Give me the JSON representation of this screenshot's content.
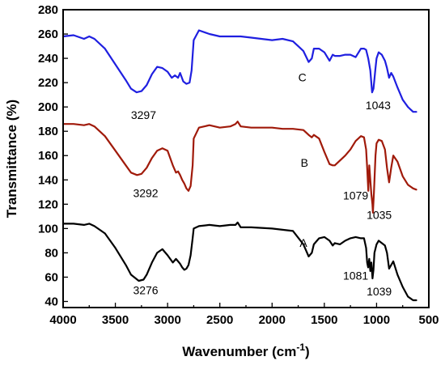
{
  "chart_data": {
    "type": "line",
    "xlabel": "Wavenumber (cm",
    "xlabel_sup": "-1",
    "xlabel_end": ")",
    "ylabel": "Transmittance (%)",
    "xlim": [
      4000,
      500
    ],
    "ylim": [
      35,
      280
    ],
    "x_ticks": [
      4000,
      3500,
      3000,
      2500,
      2000,
      1500,
      1000,
      500
    ],
    "y_ticks": [
      40,
      60,
      80,
      100,
      120,
      140,
      160,
      180,
      200,
      220,
      240,
      260,
      280
    ],
    "grid": false,
    "series": [
      {
        "name": "C",
        "color": "#1f1fe0",
        "x": [
          4000,
          3900,
          3800,
          3750,
          3700,
          3600,
          3500,
          3400,
          3350,
          3297,
          3250,
          3200,
          3150,
          3100,
          3050,
          3000,
          2960,
          2930,
          2900,
          2880,
          2850,
          2820,
          2790,
          2770,
          2750,
          2700,
          2600,
          2500,
          2400,
          2300,
          2200,
          2000,
          1900,
          1800,
          1750,
          1700,
          1650,
          1620,
          1600,
          1550,
          1500,
          1450,
          1420,
          1400,
          1350,
          1300,
          1250,
          1200,
          1150,
          1120,
          1100,
          1080,
          1060,
          1043,
          1030,
          1010,
          1000,
          980,
          950,
          920,
          900,
          880,
          860,
          840,
          800,
          750,
          700,
          650,
          620
        ],
        "values": [
          258,
          259,
          256,
          258,
          256,
          248,
          235,
          222,
          215,
          212,
          213,
          218,
          227,
          233,
          232,
          229,
          224,
          226,
          224,
          228,
          221,
          219,
          220,
          230,
          255,
          263,
          260,
          258,
          258,
          258,
          257,
          255,
          256,
          254,
          250,
          246,
          237,
          240,
          248,
          248,
          245,
          238,
          243,
          242,
          242,
          243,
          243,
          241,
          248,
          248,
          247,
          240,
          230,
          212,
          215,
          232,
          240,
          245,
          243,
          238,
          232,
          224,
          228,
          225,
          216,
          206,
          200,
          196,
          196
        ]
      },
      {
        "name": "B",
        "color": "#a01a0a",
        "x": [
          4000,
          3900,
          3800,
          3750,
          3700,
          3600,
          3500,
          3400,
          3350,
          3292,
          3250,
          3200,
          3150,
          3100,
          3050,
          3000,
          2950,
          2920,
          2900,
          2880,
          2860,
          2840,
          2820,
          2800,
          2780,
          2760,
          2750,
          2700,
          2600,
          2500,
          2400,
          2350,
          2330,
          2300,
          2200,
          2000,
          1900,
          1800,
          1700,
          1650,
          1620,
          1600,
          1550,
          1500,
          1450,
          1420,
          1400,
          1350,
          1300,
          1250,
          1200,
          1150,
          1120,
          1100,
          1090,
          1079,
          1070,
          1060,
          1050,
          1040,
          1035,
          1025,
          1010,
          1000,
          980,
          950,
          920,
          900,
          880,
          860,
          840,
          800,
          750,
          700,
          650,
          620
        ],
        "values": [
          186,
          186,
          185,
          186,
          184,
          176,
          164,
          152,
          146,
          144,
          145,
          150,
          158,
          164,
          166,
          164,
          152,
          146,
          147,
          144,
          140,
          137,
          133,
          131,
          135,
          152,
          174,
          183,
          185,
          183,
          184,
          186,
          188,
          184,
          183,
          183,
          182,
          182,
          181,
          177,
          175,
          177,
          174,
          163,
          153,
          152,
          152,
          156,
          160,
          165,
          172,
          176,
          175,
          165,
          150,
          131,
          152,
          140,
          128,
          120,
          113,
          130,
          160,
          170,
          173,
          172,
          165,
          150,
          138,
          150,
          160,
          155,
          143,
          136,
          133,
          132
        ]
      },
      {
        "name": "A",
        "color": "#000000",
        "x": [
          4000,
          3900,
          3800,
          3750,
          3700,
          3600,
          3500,
          3400,
          3350,
          3276,
          3230,
          3200,
          3150,
          3100,
          3050,
          3000,
          2950,
          2920,
          2900,
          2880,
          2860,
          2840,
          2820,
          2800,
          2780,
          2760,
          2750,
          2700,
          2600,
          2500,
          2400,
          2350,
          2330,
          2300,
          2200,
          2000,
          1900,
          1800,
          1700,
          1650,
          1620,
          1600,
          1550,
          1500,
          1450,
          1420,
          1400,
          1350,
          1300,
          1250,
          1200,
          1150,
          1120,
          1100,
          1090,
          1081,
          1070,
          1060,
          1050,
          1039,
          1030,
          1020,
          1000,
          980,
          950,
          920,
          900,
          880,
          860,
          840,
          800,
          750,
          700,
          650,
          620
        ],
        "values": [
          104,
          104,
          103,
          104,
          102,
          96,
          84,
          70,
          62,
          57,
          58,
          62,
          72,
          80,
          83,
          78,
          72,
          75,
          73,
          71,
          68,
          66,
          67,
          70,
          78,
          92,
          100,
          102,
          103,
          102,
          103,
          103,
          105,
          101,
          101,
          100,
          99,
          98,
          87,
          77,
          80,
          87,
          92,
          93,
          90,
          86,
          88,
          87,
          90,
          92,
          93,
          92,
          92,
          84,
          72,
          68,
          75,
          65,
          72,
          59,
          66,
          80,
          87,
          90,
          88,
          86,
          80,
          67,
          70,
          73,
          62,
          52,
          44,
          41,
          41
        ]
      }
    ],
    "annotations": [
      {
        "text": "C",
        "x": 1710,
        "y": 221
      },
      {
        "text": "3297",
        "x": 3230,
        "y": 190
      },
      {
        "text": "1043",
        "x": 985,
        "y": 198
      },
      {
        "text": "B",
        "x": 1690,
        "y": 151
      },
      {
        "text": "3292",
        "x": 3210,
        "y": 126
      },
      {
        "text": "1079",
        "x": 1200,
        "y": 124
      },
      {
        "text": "1035",
        "x": 975,
        "y": 108
      },
      {
        "text": "A",
        "x": 1700,
        "y": 85
      },
      {
        "text": "3276",
        "x": 3210,
        "y": 46
      },
      {
        "text": "1081",
        "x": 1200,
        "y": 58
      },
      {
        "text": "1039",
        "x": 975,
        "y": 45
      }
    ]
  }
}
